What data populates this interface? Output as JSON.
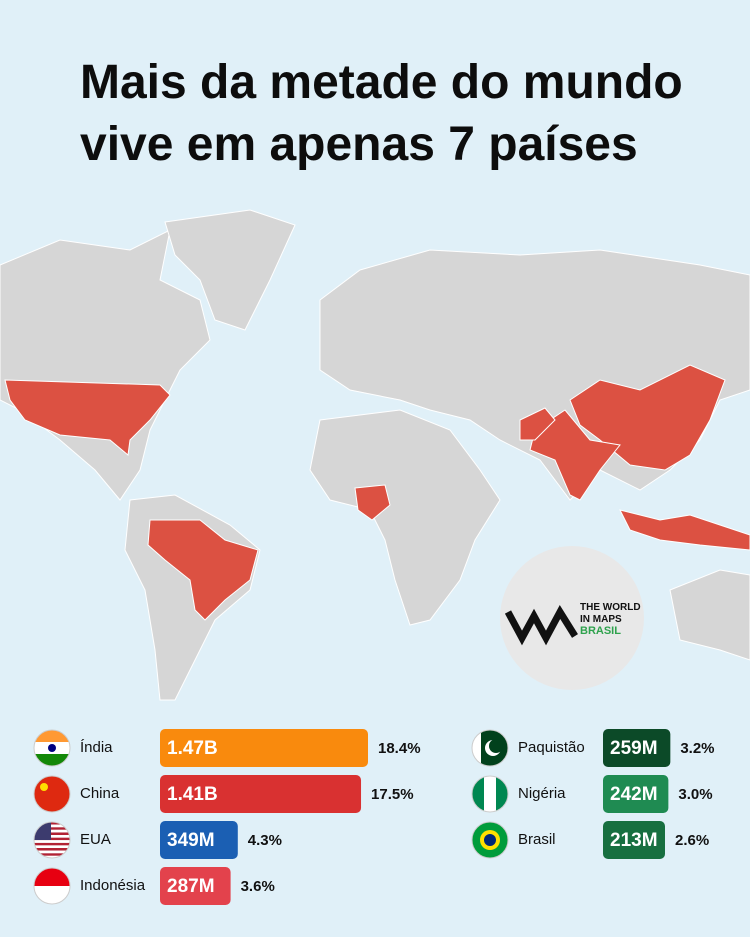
{
  "chart_data": {
    "type": "bar",
    "title": [
      "Mais da metade do mundo",
      "vive em apenas 7 países"
    ],
    "categories": [
      "Índia",
      "China",
      "EUA",
      "Indonésia",
      "Paquistão",
      "Nigéria",
      "Brasil"
    ],
    "values": [
      1470000000,
      1410000000,
      349000000,
      287000000,
      259000000,
      242000000,
      213000000
    ],
    "value_labels": [
      "1.47B",
      "1.41B",
      "349M",
      "287M",
      "259M",
      "242M",
      "213M"
    ],
    "shares": [
      18.4,
      17.5,
      4.3,
      3.6,
      3.2,
      3.0,
      2.6
    ],
    "share_labels": [
      "18.4%",
      "17.5%",
      "4.3%",
      "3.6%",
      "3.2%",
      "3.0%",
      "2.6%"
    ],
    "colors": [
      "#f98a0d",
      "#d93131",
      "#1b5fb3",
      "#e3424c",
      "#0c4a28",
      "#1f8b52",
      "#176f40"
    ],
    "logo": [
      "THE WORLD",
      "IN MAPS",
      "BRASIL"
    ]
  }
}
